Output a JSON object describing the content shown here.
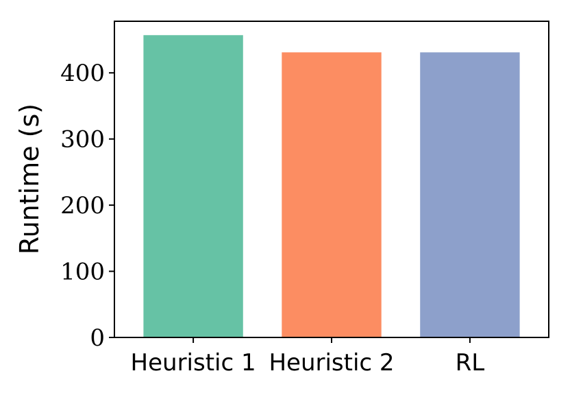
{
  "chart_data": {
    "type": "bar",
    "title": "",
    "xlabel": "",
    "ylabel": "Runtime (s)",
    "categories": [
      "Heuristic 1",
      "Heuristic 2",
      "RL"
    ],
    "values": [
      457,
      431,
      431
    ],
    "colors": [
      "#66c2a5",
      "#fc8d62",
      "#8da0cb"
    ],
    "ylim": [
      0,
      478
    ],
    "yticks": [
      0,
      100,
      200,
      300,
      400
    ],
    "grid": false,
    "legend": "none"
  }
}
